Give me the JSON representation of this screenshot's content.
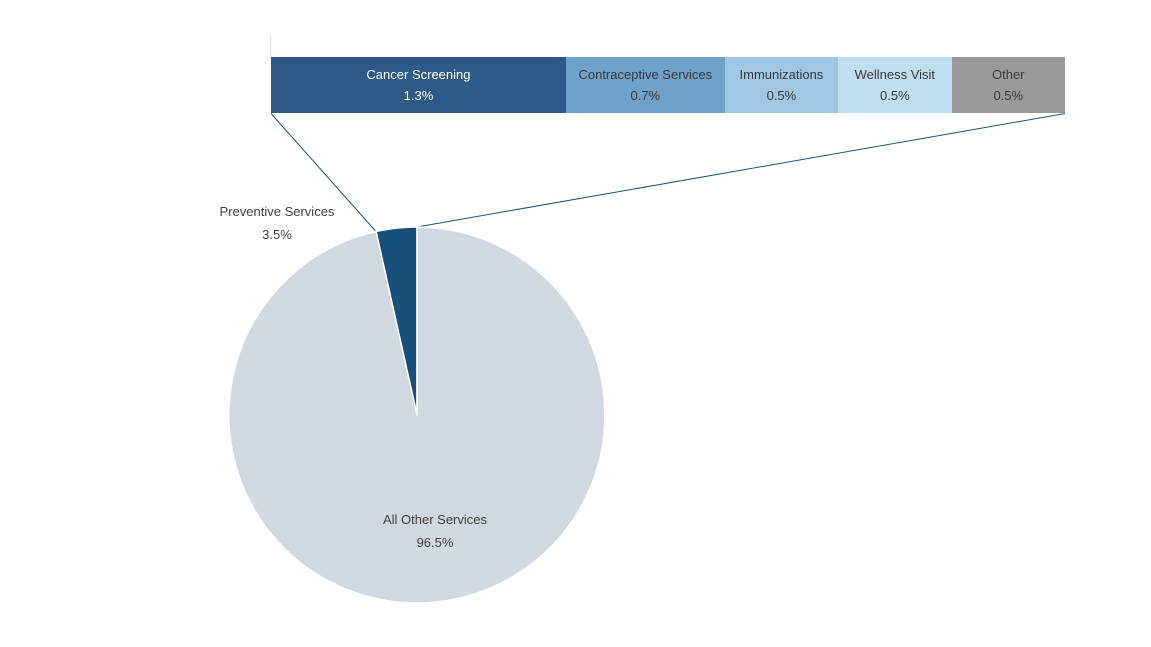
{
  "chart_data": {
    "type": "pie",
    "title": "",
    "pie": {
      "start_angle_deg": -12.6,
      "slices": [
        {
          "label": "Preventive Services",
          "value": 3.5,
          "display": "3.5%",
          "color": "#175078"
        },
        {
          "label": "All Other Services",
          "value": 96.5,
          "display": "96.5%",
          "color": "#d2d8e0"
        }
      ]
    },
    "breakout_bar": {
      "segments": [
        {
          "label": "Cancer Screening",
          "value": 1.3,
          "display": "1.3%",
          "color": "#2e5a87",
          "text_color": "#ffffff"
        },
        {
          "label": "Contraceptive Services",
          "value": 0.7,
          "display": "0.7%",
          "color": "#70a1c9",
          "text_color": "#3a3a3a"
        },
        {
          "label": "Immunizations",
          "value": 0.5,
          "display": "0.5%",
          "color": "#9ec7e4",
          "text_color": "#3a3a3a"
        },
        {
          "label": "Wellness Visit",
          "value": 0.5,
          "display": "0.5%",
          "color": "#bfdef1",
          "text_color": "#3a3a3a"
        },
        {
          "label": "Other",
          "value": 0.5,
          "display": "0.5%",
          "color": "#9a9a9a",
          "text_color": "#3a3a3a"
        }
      ]
    },
    "colors": {
      "leader_line": "#1f5379",
      "slice_separator": "#ffffff"
    }
  }
}
